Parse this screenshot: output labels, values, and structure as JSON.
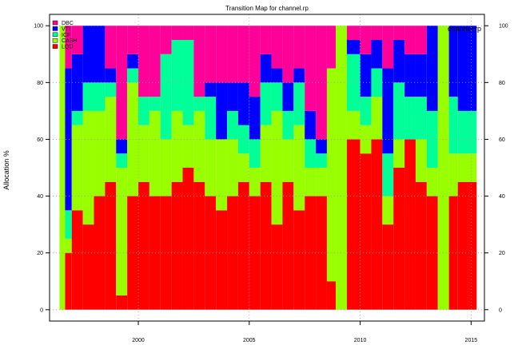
{
  "chart_data": {
    "type": "area",
    "title": "Transition Map for channel.rp",
    "corner_label": "channel.rp",
    "ylabel": "Allocation %",
    "xlabel": "",
    "xlim": [
      1996.0,
      2015.6
    ],
    "ylim": [
      -4,
      104
    ],
    "x_ticks": [
      2000,
      2005,
      2010,
      2015
    ],
    "y_ticks": [
      0,
      20,
      40,
      60,
      80,
      100
    ],
    "x_tick_labels": [
      "2000",
      "2005",
      "2010",
      "2015"
    ],
    "y_tick_labels": [
      "0",
      "20",
      "40",
      "60",
      "80",
      "100"
    ],
    "grid": true,
    "legend_position": "top-left",
    "legend": [
      {
        "name": "DBC",
        "color": "#FF0099"
      },
      {
        "name": "VTI",
        "color": "#0000FF"
      },
      {
        "name": "ICF",
        "color": "#00FF99"
      },
      {
        "name": "CASH",
        "color": "#99FF00"
      },
      {
        "name": "LQD",
        "color": "#FF0000"
      }
    ],
    "stack_order_bottom_to_top": [
      "LQD",
      "CASH",
      "ICF",
      "VTI",
      "DBC"
    ],
    "x_start": 1996.45,
    "x_end": 2015.25,
    "segments": [
      {
        "until": 1996.7,
        "LQD": 0,
        "CASH": 100,
        "ICF": 0,
        "VTI": 0,
        "DBC": 0
      },
      {
        "until": 1997.0,
        "LQD": 20,
        "CASH": 5,
        "ICF": 10,
        "VTI": 50,
        "DBC": 15
      },
      {
        "until": 1997.5,
        "LQD": 35,
        "CASH": 30,
        "ICF": 5,
        "VTI": 20,
        "DBC": 10
      },
      {
        "until": 1998.0,
        "LQD": 30,
        "CASH": 40,
        "ICF": 10,
        "VTI": 20,
        "DBC": 0
      },
      {
        "until": 1998.5,
        "LQD": 40,
        "CASH": 30,
        "ICF": 10,
        "VTI": 20,
        "DBC": 0
      },
      {
        "until": 1999.0,
        "LQD": 45,
        "CASH": 30,
        "ICF": 5,
        "VTI": 5,
        "DBC": 15
      },
      {
        "until": 1999.5,
        "LQD": 5,
        "CASH": 45,
        "ICF": 5,
        "VTI": 5,
        "DBC": 40
      },
      {
        "until": 2000.0,
        "LQD": 40,
        "CASH": 40,
        "ICF": 5,
        "VTI": 5,
        "DBC": 10
      },
      {
        "until": 2000.5,
        "LQD": 45,
        "CASH": 20,
        "ICF": 10,
        "VTI": 0,
        "DBC": 25
      },
      {
        "until": 2001.0,
        "LQD": 40,
        "CASH": 30,
        "ICF": 5,
        "VTI": 0,
        "DBC": 25
      },
      {
        "until": 2001.5,
        "LQD": 40,
        "CASH": 20,
        "ICF": 30,
        "VTI": 0,
        "DBC": 10
      },
      {
        "until": 2002.0,
        "LQD": 45,
        "CASH": 25,
        "ICF": 25,
        "VTI": 0,
        "DBC": 5
      },
      {
        "until": 2002.5,
        "LQD": 50,
        "CASH": 15,
        "ICF": 30,
        "VTI": 0,
        "DBC": 5
      },
      {
        "until": 2003.0,
        "LQD": 45,
        "CASH": 25,
        "ICF": 5,
        "VTI": 0,
        "DBC": 25
      },
      {
        "until": 2003.5,
        "LQD": 40,
        "CASH": 20,
        "ICF": 15,
        "VTI": 5,
        "DBC": 20
      },
      {
        "until": 2004.0,
        "LQD": 35,
        "CASH": 25,
        "ICF": 0,
        "VTI": 20,
        "DBC": 20
      },
      {
        "until": 2004.5,
        "LQD": 40,
        "CASH": 20,
        "ICF": 10,
        "VTI": 10,
        "DBC": 20
      },
      {
        "until": 2005.0,
        "LQD": 45,
        "CASH": 10,
        "ICF": 10,
        "VTI": 15,
        "DBC": 20
      },
      {
        "until": 2005.5,
        "LQD": 40,
        "CASH": 10,
        "ICF": 10,
        "VTI": 15,
        "DBC": 25
      },
      {
        "until": 2006.0,
        "LQD": 45,
        "CASH": 20,
        "ICF": 15,
        "VTI": 10,
        "DBC": 10
      },
      {
        "until": 2006.5,
        "LQD": 30,
        "CASH": 40,
        "ICF": 10,
        "VTI": 5,
        "DBC": 15
      },
      {
        "until": 2007.0,
        "LQD": 45,
        "CASH": 15,
        "ICF": 10,
        "VTI": 10,
        "DBC": 20
      },
      {
        "until": 2007.5,
        "LQD": 35,
        "CASH": 30,
        "ICF": 15,
        "VTI": 5,
        "DBC": 15
      },
      {
        "until": 2008.0,
        "LQD": 40,
        "CASH": 10,
        "ICF": 10,
        "VTI": 10,
        "DBC": 30
      },
      {
        "until": 2008.5,
        "LQD": 40,
        "CASH": 10,
        "ICF": 5,
        "VTI": 5,
        "DBC": 40
      },
      {
        "until": 2008.9,
        "LQD": 10,
        "CASH": 75,
        "ICF": 0,
        "VTI": 0,
        "DBC": 15
      },
      {
        "until": 2009.4,
        "LQD": 0,
        "CASH": 100,
        "ICF": 0,
        "VTI": 0,
        "DBC": 0
      },
      {
        "until": 2010.0,
        "LQD": 60,
        "CASH": 10,
        "ICF": 20,
        "VTI": 5,
        "DBC": 5
      },
      {
        "until": 2010.5,
        "LQD": 55,
        "CASH": 10,
        "ICF": 10,
        "VTI": 15,
        "DBC": 10
      },
      {
        "until": 2011.0,
        "LQD": 60,
        "CASH": 15,
        "ICF": 10,
        "VTI": 10,
        "DBC": 5
      },
      {
        "until": 2011.5,
        "LQD": 30,
        "CASH": 10,
        "ICF": 15,
        "VTI": 30,
        "DBC": 15
      },
      {
        "until": 2012.0,
        "LQD": 50,
        "CASH": 10,
        "ICF": 20,
        "VTI": 15,
        "DBC": 5
      },
      {
        "until": 2012.5,
        "LQD": 60,
        "CASH": 0,
        "ICF": 15,
        "VTI": 15,
        "DBC": 10
      },
      {
        "until": 2013.0,
        "LQD": 45,
        "CASH": 15,
        "ICF": 15,
        "VTI": 15,
        "DBC": 10
      },
      {
        "until": 2013.5,
        "LQD": 40,
        "CASH": 10,
        "ICF": 20,
        "VTI": 30,
        "DBC": 0
      },
      {
        "until": 2014.0,
        "LQD": 0,
        "CASH": 100,
        "ICF": 0,
        "VTI": 0,
        "DBC": 0
      },
      {
        "until": 2014.4,
        "LQD": 40,
        "CASH": 15,
        "ICF": 20,
        "VTI": 25,
        "DBC": 0
      },
      {
        "until": 2015.25,
        "LQD": 45,
        "CASH": 10,
        "ICF": 15,
        "VTI": 30,
        "DBC": 0
      }
    ]
  }
}
